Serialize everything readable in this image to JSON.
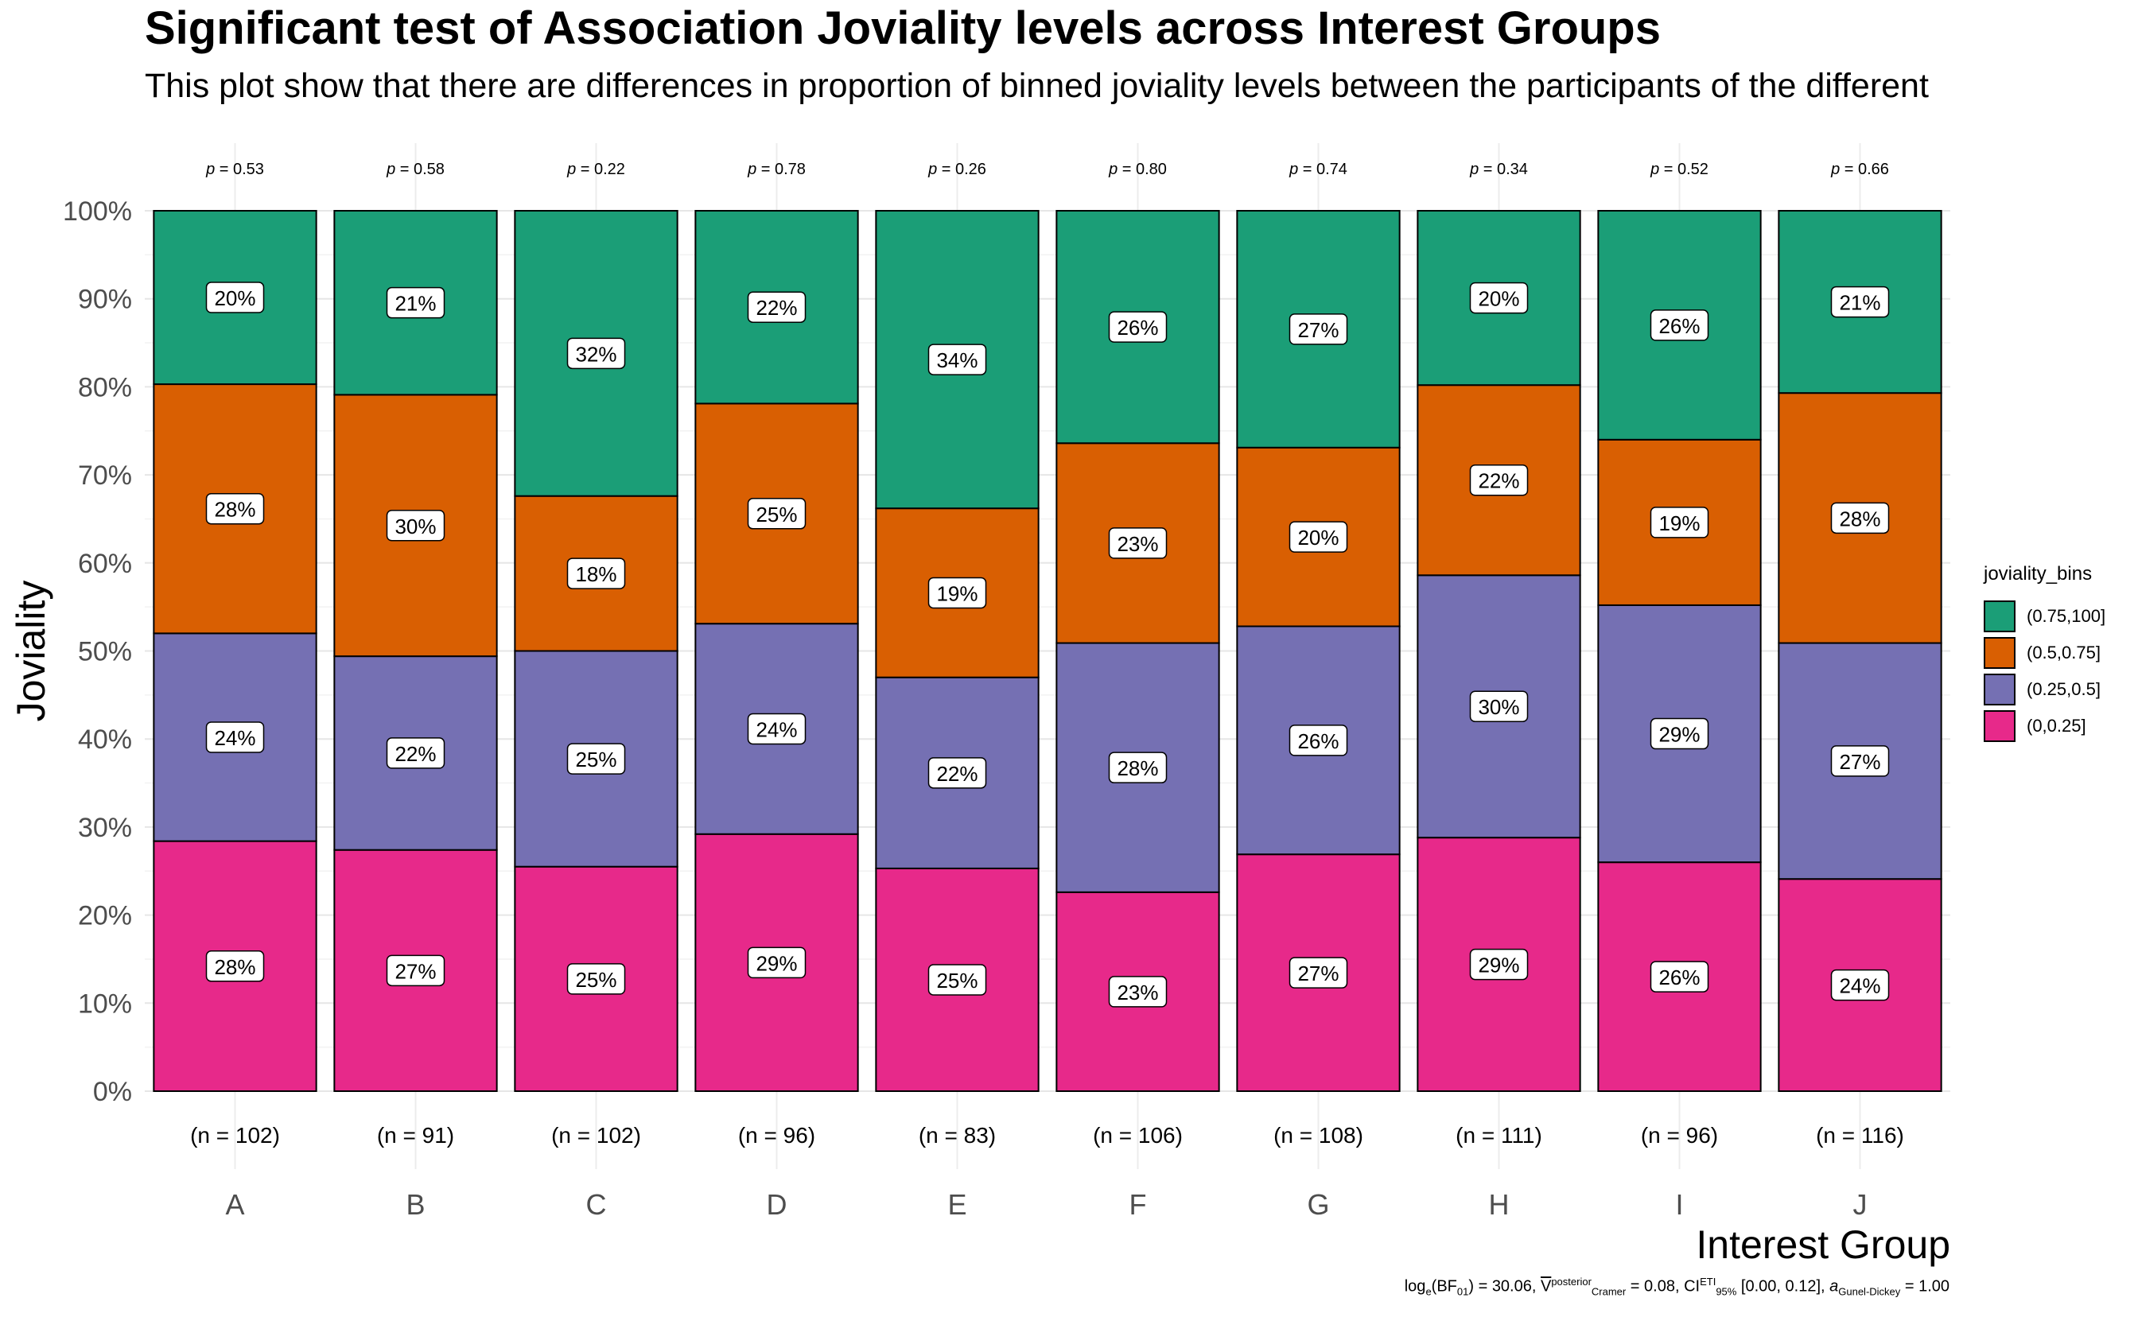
{
  "title": "Significant test of Association Joviality levels across Interest Groups",
  "subtitle": "This plot show that there are differences in proportion of binned joviality levels between the participants of the different",
  "caption": {
    "text": "log_e(BF_01) = 30.06, V^posterior_Cramer = 0.08, CI^ETI_95% [0.00, 0.12], a_Gunel-Dickey = 1.00",
    "log_e": "log",
    "e_sub": "e",
    "bf": "(BF",
    "bf_sub": "01",
    "bf_val": ") = 30.06,",
    "v": "V",
    "v_sup": "posterior",
    "v_sub": "Cramer",
    "v_val": " = 0.08, CI",
    "ci_sup": "ETI",
    "ci_sub": "95%",
    "ci_val": " [0.00, 0.12],",
    "a": "a",
    "a_sub": "Gunel-Dickey",
    "a_val": " = 1.00"
  },
  "chart_data": {
    "type": "bar",
    "stacked": true,
    "percent": true,
    "xlabel": "Interest Group",
    "ylabel": "Joviality",
    "ylim": [
      0,
      100
    ],
    "yticks": [
      "0%",
      "10%",
      "20%",
      "30%",
      "40%",
      "50%",
      "60%",
      "70%",
      "80%",
      "90%",
      "100%"
    ],
    "categories": [
      "A",
      "B",
      "C",
      "D",
      "E",
      "F",
      "G",
      "H",
      "I",
      "J"
    ],
    "p_values": [
      "0.53",
      "0.58",
      "0.22",
      "0.78",
      "0.26",
      "0.80",
      "0.74",
      "0.34",
      "0.52",
      "0.66"
    ],
    "p_prefix": "p",
    "n_labels": [
      "(n = 102)",
      "(n = 91)",
      "(n = 102)",
      "(n = 96)",
      "(n = 83)",
      "(n = 106)",
      "(n = 108)",
      "(n = 111)",
      "(n = 96)",
      "(n = 116)"
    ],
    "series": [
      {
        "name": "(0,0.25]",
        "color": "#e7298a",
        "values": [
          28,
          27,
          25,
          29,
          25,
          23,
          27,
          29,
          26,
          24
        ],
        "labels": [
          "28%",
          "27%",
          "25%",
          "29%",
          "25%",
          "23%",
          "27%",
          "29%",
          "26%",
          "24%"
        ]
      },
      {
        "name": "(0.25,0.5]",
        "color": "#7570b3",
        "values": [
          24,
          22,
          25,
          24,
          22,
          28,
          26,
          30,
          29,
          27
        ],
        "labels": [
          "24%",
          "22%",
          "25%",
          "24%",
          "22%",
          "28%",
          "26%",
          "30%",
          "29%",
          "27%"
        ]
      },
      {
        "name": "(0.5,0.75]",
        "color": "#d95f02",
        "values": [
          28,
          30,
          18,
          25,
          19,
          23,
          20,
          22,
          19,
          28
        ],
        "labels": [
          "28%",
          "30%",
          "18%",
          "25%",
          "19%",
          "23%",
          "20%",
          "22%",
          "19%",
          "28%"
        ]
      },
      {
        "name": "(0.75,100]",
        "color": "#1b9e77",
        "values": [
          20,
          21,
          32,
          22,
          34,
          26,
          27,
          20,
          26,
          21
        ],
        "labels": [
          "20%",
          "21%",
          "32%",
          "22%",
          "34%",
          "26%",
          "27%",
          "20%",
          "26%",
          "21%"
        ]
      }
    ],
    "boundaries": [
      [
        28.4,
        52.0,
        80.3,
        100
      ],
      [
        27.4,
        49.4,
        79.1,
        100
      ],
      [
        25.5,
        50.0,
        67.6,
        100
      ],
      [
        29.2,
        53.1,
        78.1,
        100
      ],
      [
        25.3,
        47.0,
        66.2,
        100
      ],
      [
        22.6,
        50.9,
        73.6,
        100
      ],
      [
        26.9,
        52.8,
        73.1,
        100
      ],
      [
        28.8,
        58.6,
        80.2,
        100
      ],
      [
        26.0,
        55.2,
        74.0,
        100
      ],
      [
        24.1,
        50.9,
        79.3,
        100
      ]
    ],
    "legend": {
      "title": "joviality_bins",
      "position": "right",
      "entries": [
        {
          "label": "(0.75,100]",
          "color": "#1b9e77"
        },
        {
          "label": "(0.5,0.75]",
          "color": "#d95f02"
        },
        {
          "label": "(0.25,0.5]",
          "color": "#7570b3"
        },
        {
          "label": "(0,0.25]",
          "color": "#e7298a"
        }
      ]
    },
    "grid": true
  }
}
